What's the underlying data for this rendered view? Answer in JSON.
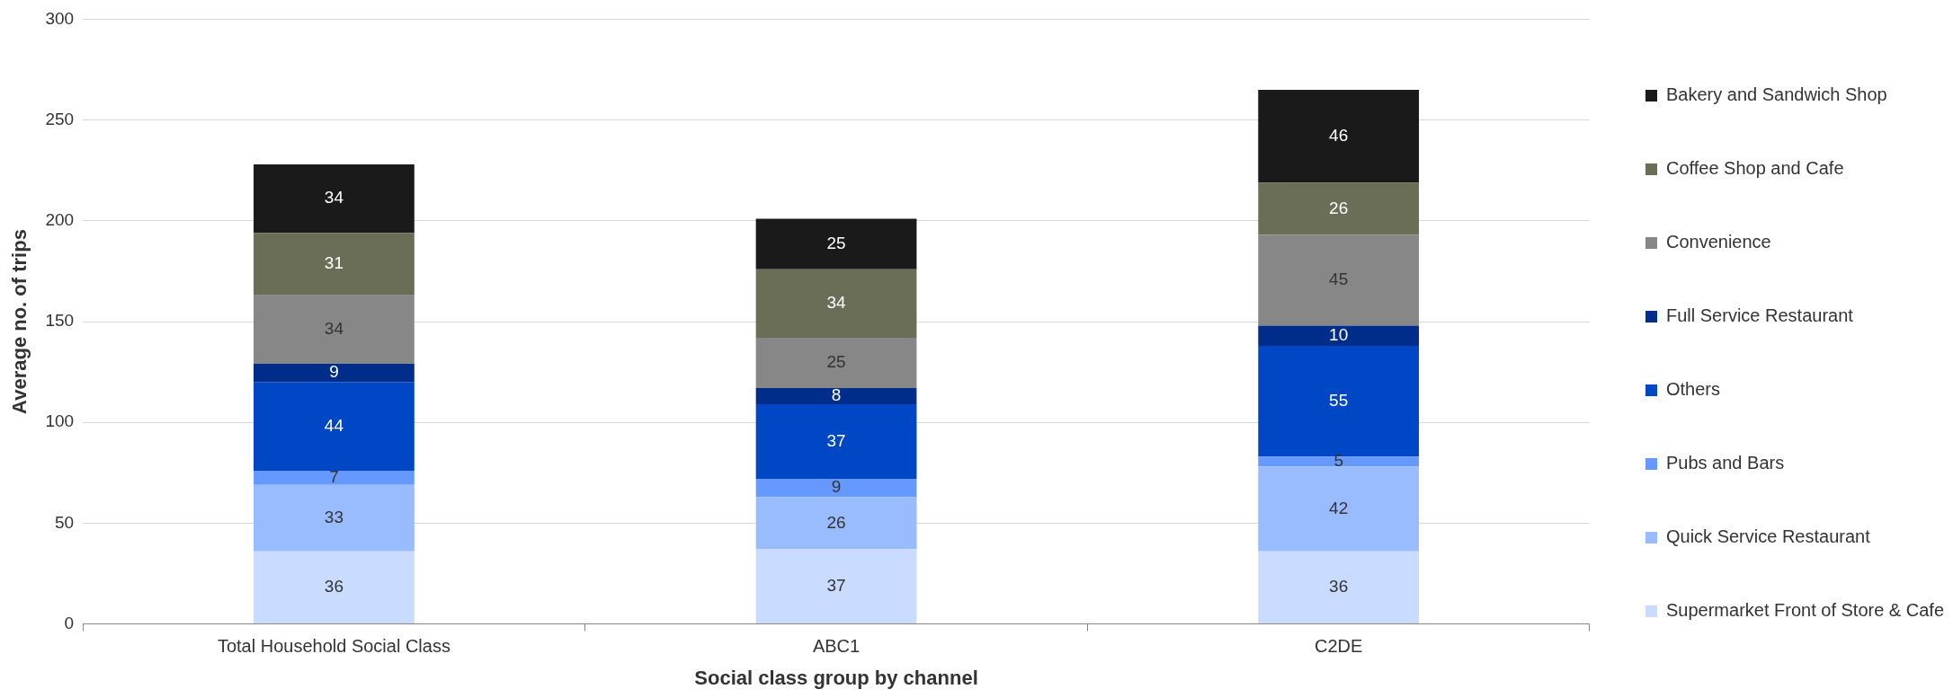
{
  "chart_data": {
    "type": "bar",
    "stacked": true,
    "xlabel": "Social class group by channel",
    "ylabel": "Average no. of trips",
    "categories": [
      "Total Household Social Class",
      "ABC1",
      "C2DE"
    ],
    "series": [
      {
        "name": "Supermarket Front of Store & Cafe",
        "color": "#c9dcff",
        "values": [
          36,
          37,
          36
        ]
      },
      {
        "name": "Quick Service Restaurant",
        "color": "#99bbff",
        "values": [
          33,
          26,
          42
        ]
      },
      {
        "name": "Pubs and Bars",
        "color": "#6699ff",
        "values": [
          7,
          9,
          5
        ]
      },
      {
        "name": "Others",
        "color": "#0047c6",
        "values": [
          44,
          37,
          55
        ]
      },
      {
        "name": "Full Service Restaurant",
        "color": "#002d8a",
        "values": [
          9,
          8,
          10
        ]
      },
      {
        "name": "Convenience",
        "color": "#878787",
        "values": [
          34,
          25,
          45
        ]
      },
      {
        "name": "Coffee Shop and Cafe",
        "color": "#6b6e57",
        "values": [
          31,
          34,
          26
        ]
      },
      {
        "name": "Bakery and Sandwich Shop",
        "color": "#1a1a1a",
        "values": [
          34,
          25,
          46
        ]
      }
    ],
    "ylim": [
      0,
      300
    ],
    "yticks": [
      0,
      50,
      100,
      150,
      200,
      250,
      300
    ],
    "grid": "y",
    "legend": "right",
    "data_labels": true
  }
}
